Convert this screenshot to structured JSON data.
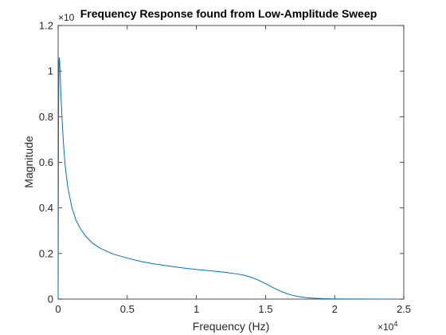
{
  "chart_data": {
    "type": "line",
    "title": "Frequency Response found from Low-Amplitude Sweep",
    "xlabel": "Frequency (Hz)",
    "ylabel": "Magnitude",
    "x_multiplier_label": {
      "base": "×10",
      "exp": "4"
    },
    "y_multiplier_label": {
      "base": "×10",
      "exp": ""
    },
    "xlim": [
      0,
      25000
    ],
    "ylim": [
      0,
      1.2
    ],
    "xticks": [
      0,
      5000,
      10000,
      15000,
      20000,
      25000
    ],
    "xtick_labels": [
      "0",
      "0.5",
      "1",
      "1.5",
      "2",
      "2.5"
    ],
    "yticks": [
      0,
      0.2,
      0.4,
      0.6,
      0.8,
      1.0,
      1.2
    ],
    "ytick_labels": [
      "0",
      "0.2",
      "0.4",
      "0.6",
      "0.8",
      "1",
      "1.2"
    ],
    "grid": false,
    "line_color": "#0072BD",
    "series": [
      {
        "x": [
          0,
          30,
          60,
          80,
          100,
          140,
          200,
          300,
          400,
          500,
          700,
          1000,
          1300,
          1600,
          2000,
          2500,
          3000,
          3500,
          4000,
          5000,
          6000,
          7000,
          8000,
          9000,
          10000,
          11000,
          12000,
          13000,
          13500,
          14000,
          14500,
          15000,
          15500,
          16000,
          16500,
          17000,
          17500,
          18000,
          18500,
          19000,
          19500,
          20000,
          21000,
          22000,
          23000,
          24000
        ],
        "y": [
          0,
          0.8,
          1.04,
          1.06,
          1.05,
          1.0,
          0.9,
          0.77,
          0.67,
          0.59,
          0.49,
          0.4,
          0.345,
          0.31,
          0.275,
          0.245,
          0.225,
          0.21,
          0.197,
          0.18,
          0.165,
          0.154,
          0.145,
          0.137,
          0.13,
          0.124,
          0.118,
          0.11,
          0.104,
          0.095,
          0.083,
          0.068,
          0.052,
          0.037,
          0.025,
          0.016,
          0.01,
          0.006,
          0.004,
          0.0025,
          0.0015,
          0.001,
          0.0005,
          0.0003,
          0.0002,
          0.0001
        ]
      }
    ]
  }
}
